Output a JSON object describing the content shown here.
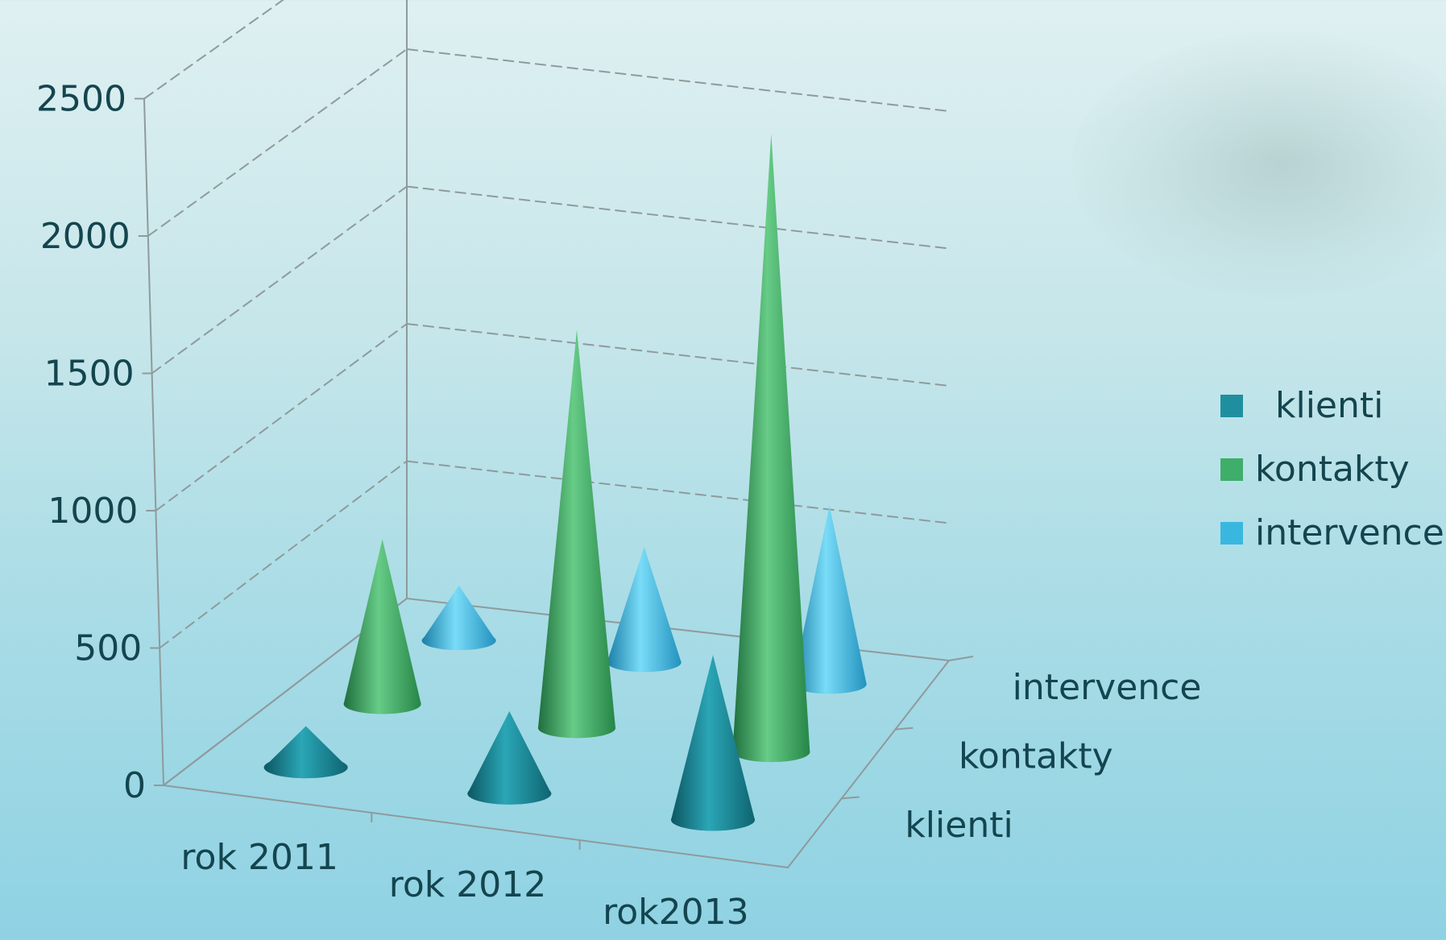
{
  "chart_data": {
    "type": "bar",
    "shape": "3d-cone",
    "categories": [
      "rok  2011",
      "rok  2012",
      "rok2013"
    ],
    "series": [
      {
        "name": "klienti",
        "values": [
          150,
          300,
          600
        ],
        "color": "#1f8fa0"
      },
      {
        "name": "kontakty",
        "values": [
          600,
          1450,
          2250
        ],
        "color": "#3fae6a"
      },
      {
        "name": "intervence",
        "values": [
          200,
          420,
          650
        ],
        "color": "#3ab7de"
      }
    ],
    "y_ticks": [
      "0",
      "500",
      "1000",
      "1500",
      "2000",
      "2500"
    ],
    "ylim": [
      0,
      2500
    ],
    "depth_labels": [
      "klienti",
      "kontakty",
      "intervence"
    ],
    "grid": true,
    "legend": {
      "position": "right",
      "items": [
        {
          "label": "klienti",
          "color": "#1f8fa0"
        },
        {
          "label": "kontakty",
          "color": "#3fae6a"
        },
        {
          "label": "intervence",
          "color": "#3ab7de"
        }
      ]
    }
  }
}
